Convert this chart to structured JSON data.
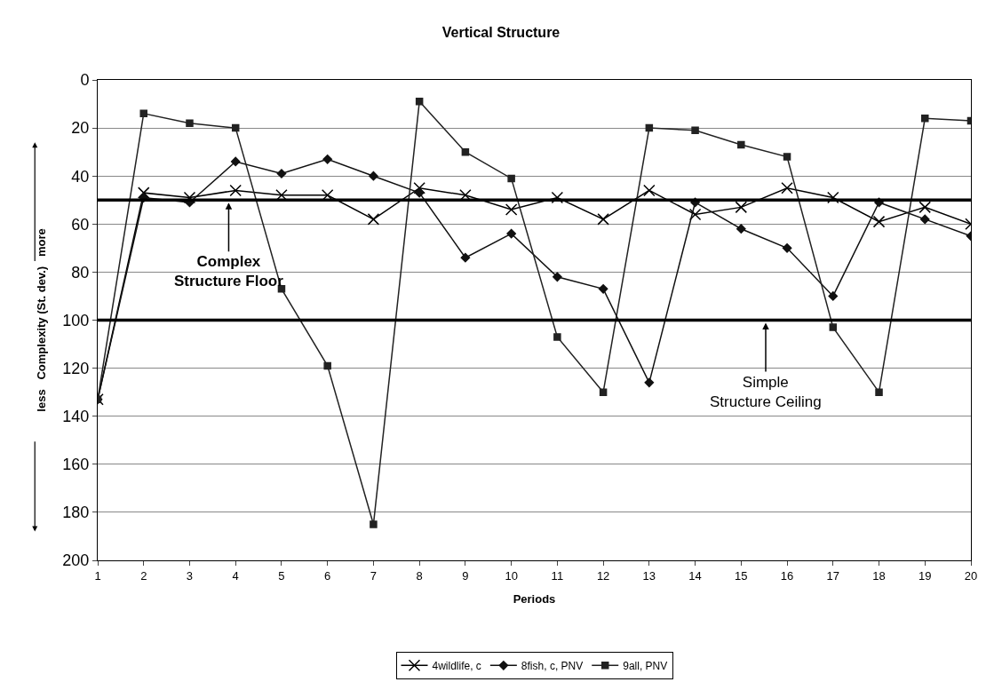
{
  "chart_data": {
    "type": "line",
    "title": "Vertical Structure",
    "xlabel": "Periods",
    "ylabel": "less   Complexity (St. dev.)   more",
    "x": [
      1,
      2,
      3,
      4,
      5,
      6,
      7,
      8,
      9,
      10,
      11,
      12,
      13,
      14,
      15,
      16,
      17,
      18,
      19,
      20
    ],
    "xlim": [
      1,
      20
    ],
    "xticks": [
      1,
      2,
      3,
      4,
      5,
      6,
      7,
      8,
      9,
      10,
      11,
      12,
      13,
      14,
      15,
      16,
      17,
      18,
      19,
      20
    ],
    "ylim": [
      200,
      0
    ],
    "yticks": [
      0,
      20,
      40,
      60,
      80,
      100,
      120,
      140,
      160,
      180,
      200
    ],
    "grid": "y",
    "legend": "bottom",
    "line_style": "solid",
    "series": [
      {
        "name": "4wildlife, c",
        "color": "#000000",
        "marker": "cross",
        "values": [
          133,
          47,
          49,
          46,
          48,
          48,
          58,
          45,
          48,
          54,
          49,
          58,
          46,
          56,
          53,
          45,
          49,
          59,
          53,
          60
        ]
      },
      {
        "name": "8fish, c, PNV",
        "color": "#111111",
        "marker": "diamond",
        "values": [
          133,
          49,
          51,
          34,
          39,
          33,
          40,
          47,
          74,
          64,
          82,
          87,
          126,
          51,
          62,
          70,
          90,
          51,
          58,
          65
        ]
      },
      {
        "name": "9all, PNV",
        "color": "#222222",
        "marker": "square",
        "values": [
          133,
          14,
          18,
          20,
          87,
          119,
          185,
          9,
          30,
          41,
          107,
          130,
          20,
          21,
          27,
          32,
          103,
          130,
          16,
          17
        ]
      }
    ],
    "ref_lines": [
      {
        "axis": "y",
        "value": 50,
        "label": "Complex\nStructure Floor",
        "color": "#000000"
      },
      {
        "axis": "y",
        "value": 100,
        "label": "Simple\nStructure Ceiling",
        "color": "#000000"
      }
    ]
  }
}
